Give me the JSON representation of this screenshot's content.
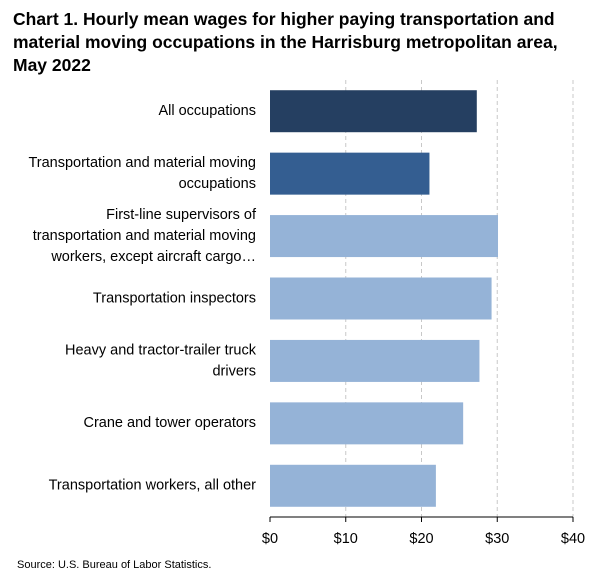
{
  "chart_data": {
    "type": "bar",
    "orientation": "horizontal",
    "title_lines": [
      "Chart 1. Hourly mean wages for higher paying transportation and",
      "material moving occupations in the Harrisburg metropolitan area,",
      "May 2022"
    ],
    "categories": [
      [
        "All occupations"
      ],
      [
        "Transportation and material moving",
        "occupations"
      ],
      [
        "First-line supervisors of",
        "transportation and material moving",
        "workers, except aircraft cargo…"
      ],
      [
        "Transportation inspectors"
      ],
      [
        "Heavy and tractor-trailer truck",
        "drivers"
      ],
      [
        "Crane and tower operators"
      ],
      [
        "Transportation workers, all other"
      ]
    ],
    "values": [
      27.3,
      21.05,
      30.1,
      29.25,
      27.65,
      25.5,
      21.9
    ],
    "bar_colors": [
      "#253f61",
      "#345e91",
      "#95b3d7",
      "#95b3d7",
      "#95b3d7",
      "#95b3d7",
      "#95b3d7"
    ],
    "xlim": [
      0,
      40
    ],
    "xticks": [
      0,
      10,
      20,
      30,
      40
    ],
    "xtick_labels": [
      "$0",
      "$10",
      "$20",
      "$30",
      "$40"
    ],
    "grid": "vertical dashed",
    "legend": "none"
  },
  "source": "Source: U.S. Bureau of Labor Statistics."
}
